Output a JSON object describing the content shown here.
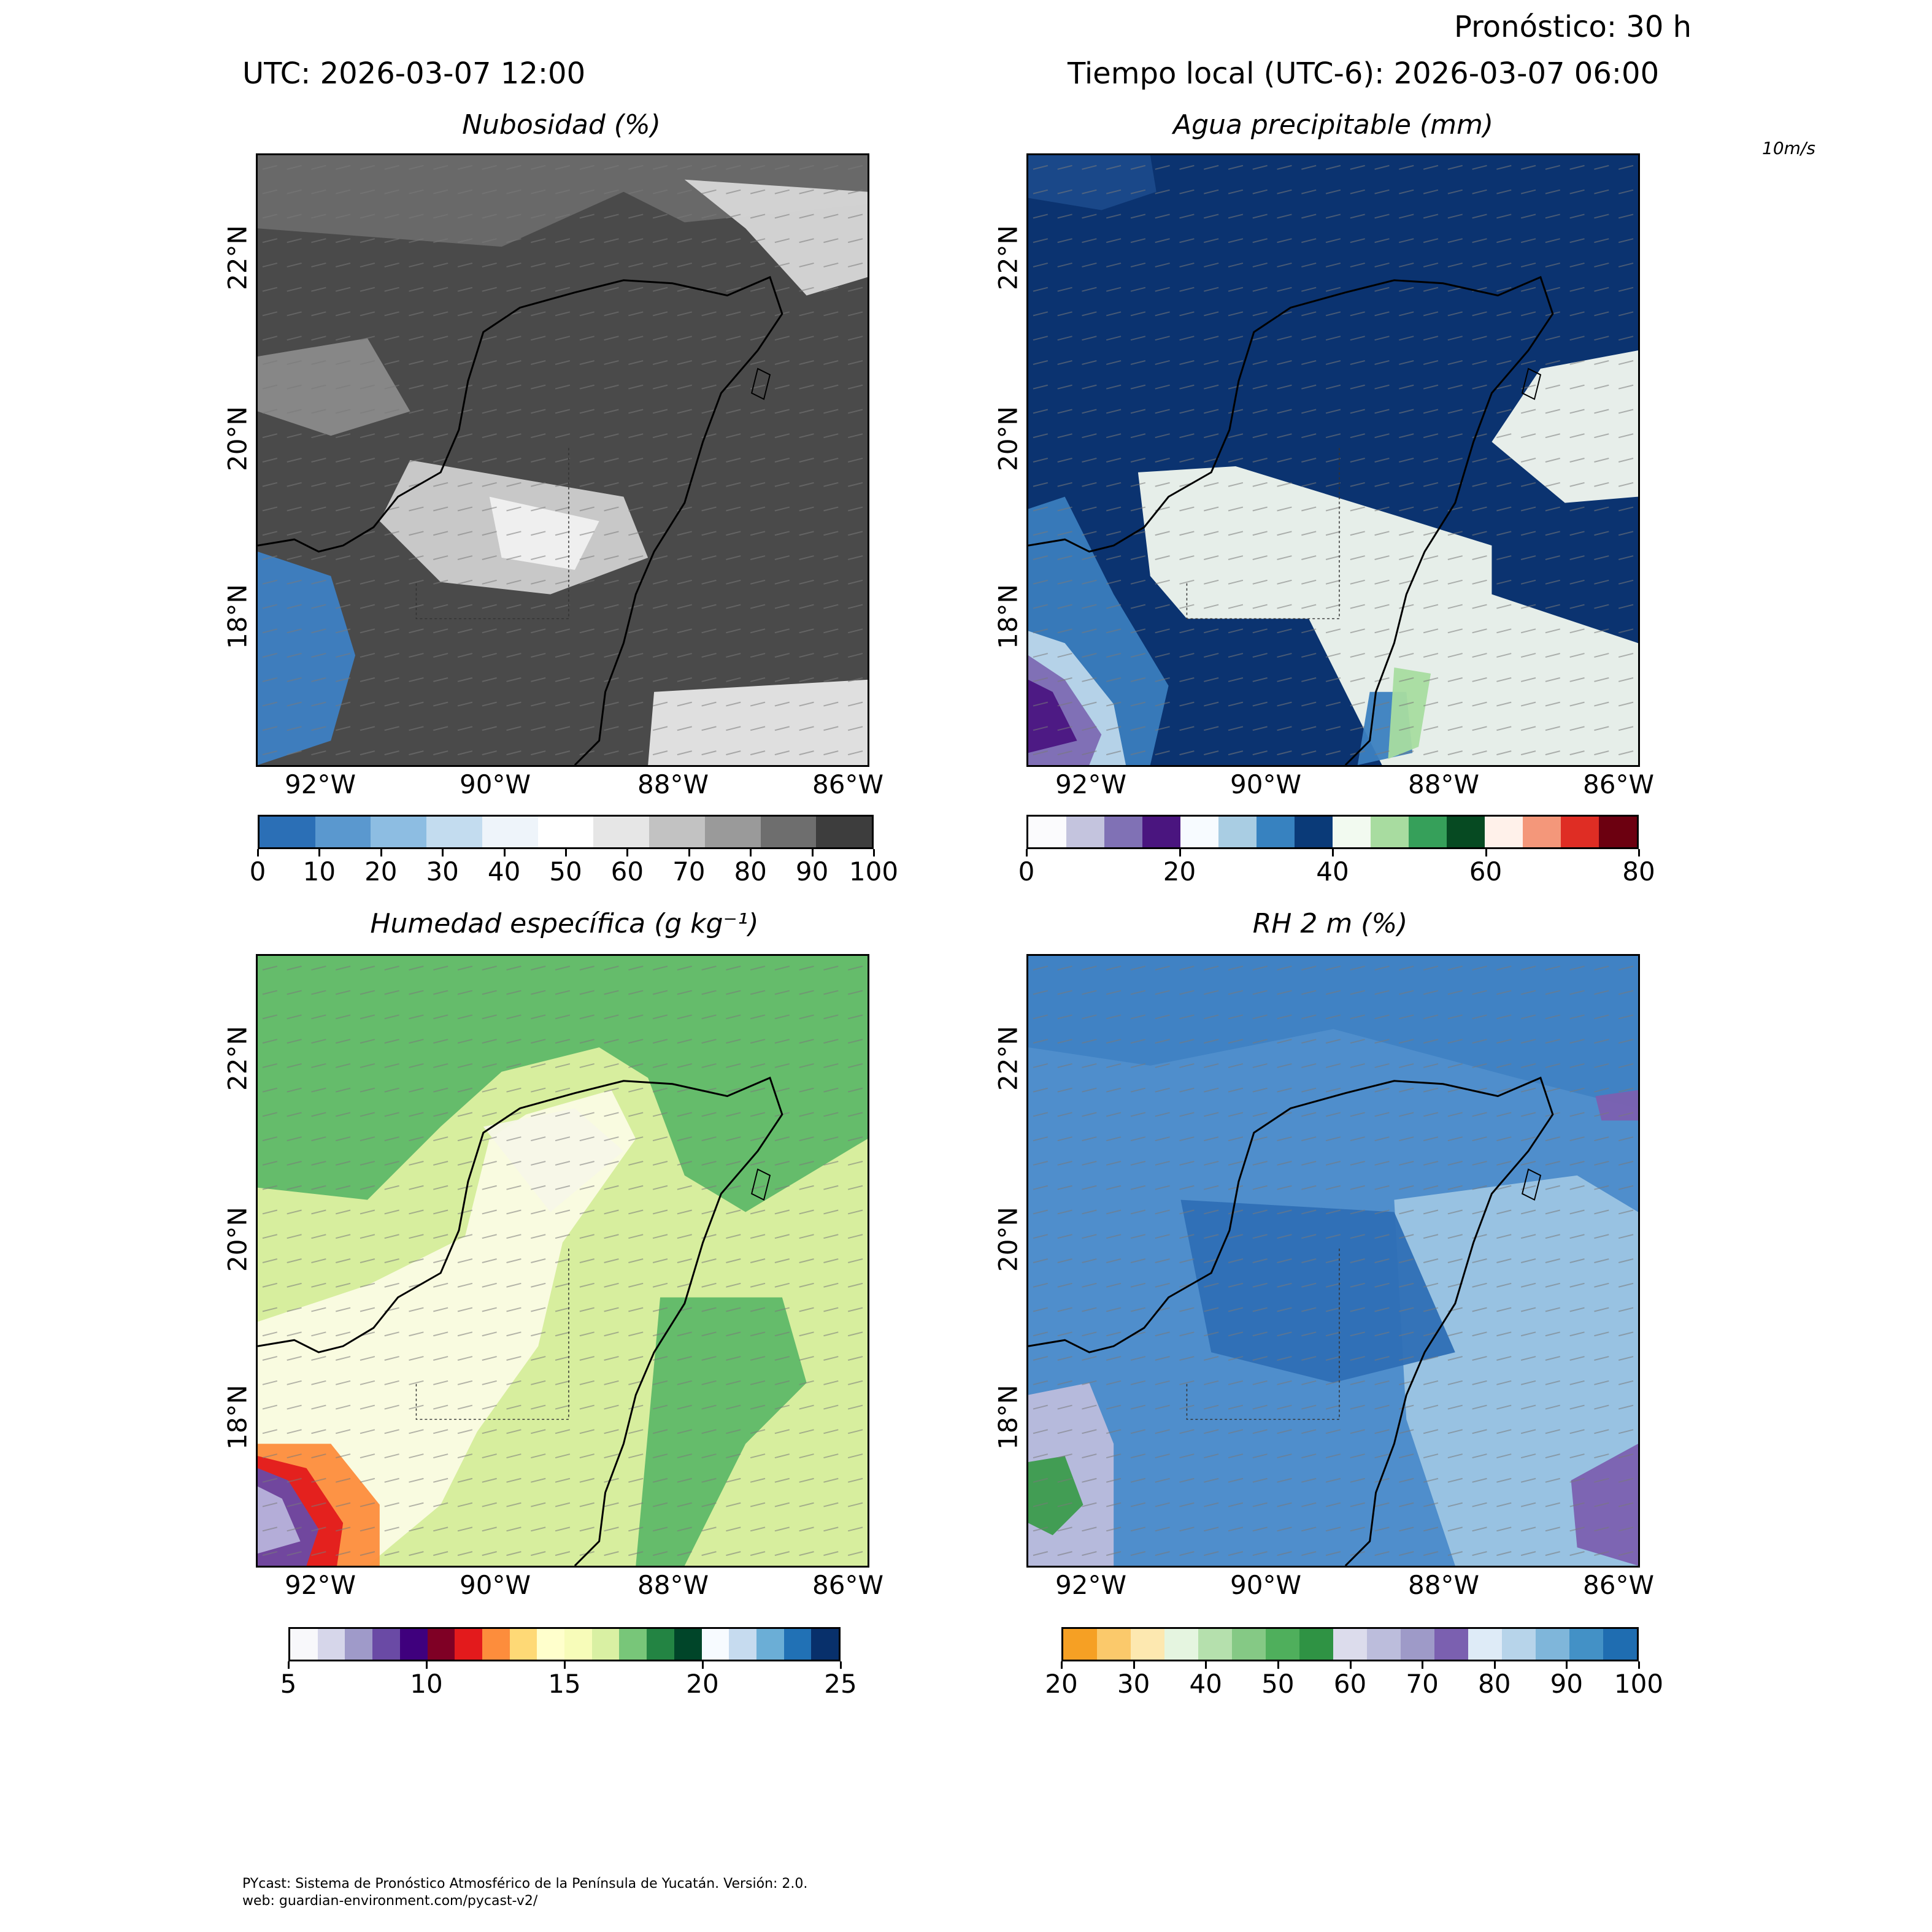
{
  "header": {
    "utc": "UTC:  2026-03-07 12:00",
    "local": "Tiempo local (UTC-6): 2026-03-07 06:00",
    "forecast": "Pronóstico: 30 h",
    "wind_key": "10m/s"
  },
  "panels": [
    {
      "title": "Nubosidad (%)",
      "cbar_ticks": [
        "0",
        "10",
        "20",
        "30",
        "40",
        "50",
        "60",
        "70",
        "80",
        "90",
        "100"
      ],
      "cbar_colors": [
        "#2b6fb6",
        "#5a98cf",
        "#8dbde2",
        "#c3dcef",
        "#eef4fa",
        "#ffffff",
        "#e6e6e6",
        "#c2c2c2",
        "#9a9a9a",
        "#6e6e6e",
        "#3d3d3d"
      ],
      "base": "#4a4a4a"
    },
    {
      "title": "Agua precipitable (mm)",
      "cbar_ticks": [
        "0",
        "20",
        "40",
        "60",
        "80"
      ],
      "cbar_colors": [
        "#fbfbfd",
        "#c4c4de",
        "#8071b5",
        "#4a157f",
        "#f7fbff",
        "#a9cde3",
        "#3782c0",
        "#0a3a78",
        "#f2faf0",
        "#a8dca0",
        "#36a05a",
        "#064a22",
        "#fff1ea",
        "#f4977a",
        "#df2d24",
        "#6c0010"
      ],
      "base": "#0b3370"
    },
    {
      "title": "Humedad específica (g kg⁻¹)",
      "cbar_ticks": [
        "5",
        "10",
        "15",
        "20",
        "25"
      ],
      "cbar_colors": [
        "#f8f8fb",
        "#d6d6ea",
        "#9f9ac9",
        "#6a4aa5",
        "#3f007d",
        "#7f0025",
        "#e31a1c",
        "#fd8d3c",
        "#fed976",
        "#ffffcc",
        "#f7fcb9",
        "#d9f0a3",
        "#78c679",
        "#238443",
        "#004529",
        "#f7fbff",
        "#c6dbef",
        "#6baed6",
        "#2171b5",
        "#08306b"
      ],
      "base": "#d7ee9e"
    },
    {
      "title": "RH 2 m (%)",
      "cbar_ticks": [
        "20",
        "30",
        "40",
        "50",
        "60",
        "70",
        "80",
        "90",
        "100"
      ],
      "cbar_colors": [
        "#f6a024",
        "#fbc96b",
        "#fde8b0",
        "#e5f5e0",
        "#b5e0ad",
        "#85c985",
        "#4faf5c",
        "#2f9344",
        "#dcdcec",
        "#bcbddc",
        "#9e9ac8",
        "#7b60b0",
        "#deebf7",
        "#b7d4ea",
        "#7fb6da",
        "#4391c6",
        "#1f6db1"
      ],
      "base": "#4f8ecc"
    }
  ],
  "x_ticks": [
    "92°W",
    "90°W",
    "88°W",
    "86°W"
  ],
  "y_ticks": [
    "22°N",
    "20°N",
    "18°N"
  ],
  "footer": {
    "line1": "PYcast: Sistema de Pronóstico Atmosférico de la Península de Yucatán. Versión: 2.0.",
    "line2": "web: guardian-environment.com/pycast-v2/"
  }
}
